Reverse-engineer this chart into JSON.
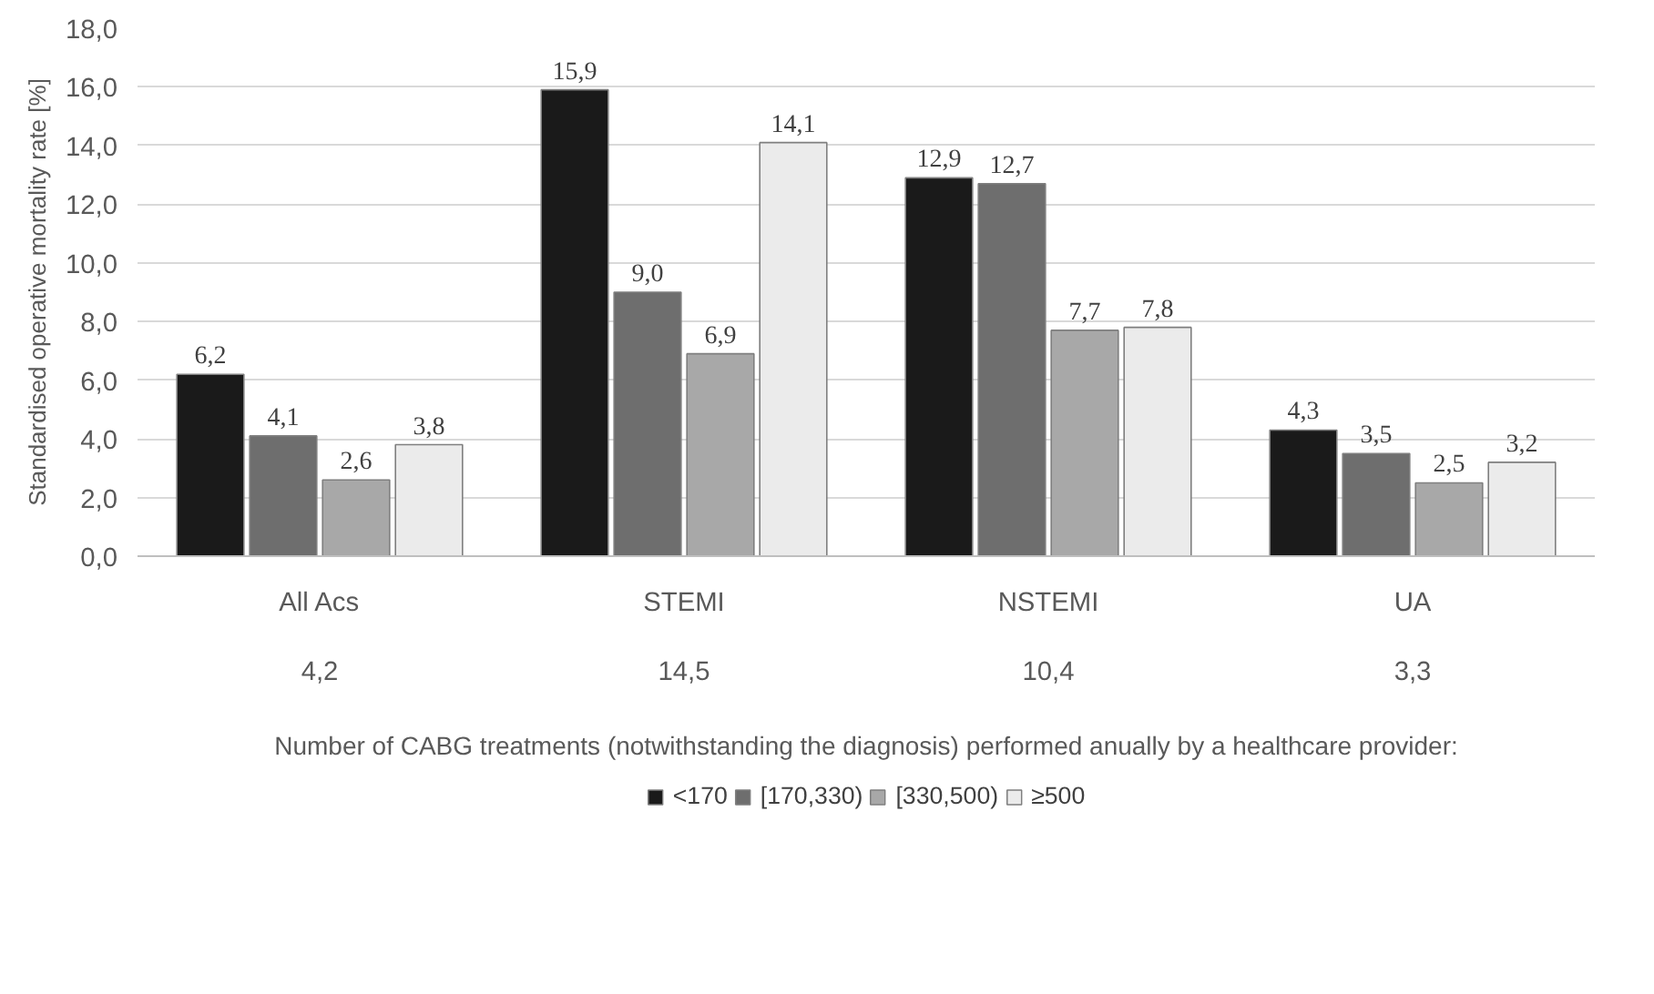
{
  "chart_data": {
    "type": "bar",
    "categories": [
      "All Acs",
      "STEMI",
      "NSTEMI",
      "UA"
    ],
    "ylabel": "Standardised operative mortality rate [%]",
    "xlabel": "Number of CABG treatments (notwithstanding the diagnosis) performed anually by a healthcare provider:",
    "ylim": [
      0,
      18
    ],
    "yticks": [
      {
        "value": 0,
        "label": "0,0"
      },
      {
        "value": 2,
        "label": "2,0"
      },
      {
        "value": 4,
        "label": "4,0"
      },
      {
        "value": 6,
        "label": "6,0"
      },
      {
        "value": 8,
        "label": "8,0"
      },
      {
        "value": 10,
        "label": "10,0"
      },
      {
        "value": 12,
        "label": "12,0"
      },
      {
        "value": 14,
        "label": "14,0"
      },
      {
        "value": 16,
        "label": "16,0"
      },
      {
        "value": 18,
        "label": "18,0"
      }
    ],
    "series": [
      {
        "name": "<170",
        "color": "#1a1a1a",
        "values": [
          6.2,
          15.9,
          12.9,
          4.3
        ],
        "value_labels": [
          "6,2",
          "15,9",
          "12,9",
          "4,3"
        ]
      },
      {
        "name": "[170,330)",
        "color": "#6e6e6e",
        "values": [
          4.1,
          9.0,
          12.7,
          3.5
        ],
        "value_labels": [
          "4,1",
          "9,0",
          "12,7",
          "3,5"
        ]
      },
      {
        "name": "[330,500)",
        "color": "#a8a8a8",
        "values": [
          2.6,
          6.9,
          7.7,
          2.5
        ],
        "value_labels": [
          "2,6",
          "6,9",
          "7,7",
          "2,5"
        ]
      },
      {
        "name": "≥500",
        "color": "#ebebeb",
        "values": [
          3.8,
          14.1,
          7.8,
          3.2
        ],
        "value_labels": [
          "3,8",
          "14,1",
          "7,8",
          "3,2"
        ]
      }
    ],
    "annotations": [
      "4,2",
      "14,5",
      "10,4",
      "3,3"
    ],
    "grid": "y",
    "legend": "bottom"
  }
}
